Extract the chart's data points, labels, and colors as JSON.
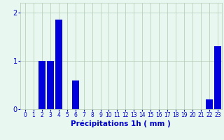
{
  "hours": [
    0,
    1,
    2,
    3,
    4,
    5,
    6,
    7,
    8,
    9,
    10,
    11,
    12,
    13,
    14,
    15,
    16,
    17,
    18,
    19,
    20,
    21,
    22,
    23
  ],
  "values": [
    0,
    0,
    1.0,
    1.0,
    1.85,
    0,
    0.6,
    0,
    0,
    0,
    0,
    0,
    0,
    0,
    0,
    0,
    0,
    0,
    0,
    0,
    0,
    0,
    0.2,
    1.3
  ],
  "bar_color": "#0000dd",
  "background_color": "#e8f8f0",
  "grid_color": "#b0c8b0",
  "xlabel": "Précipitations 1h ( mm )",
  "ylim": [
    0,
    2.2
  ],
  "yticks": [
    0,
    1,
    2
  ],
  "xlabel_color": "#0000cc",
  "tick_color": "#0000cc",
  "tick_fontsize": 5.5,
  "xlabel_fontsize": 7.5,
  "ytick_fontsize": 7,
  "bar_width": 0.85
}
